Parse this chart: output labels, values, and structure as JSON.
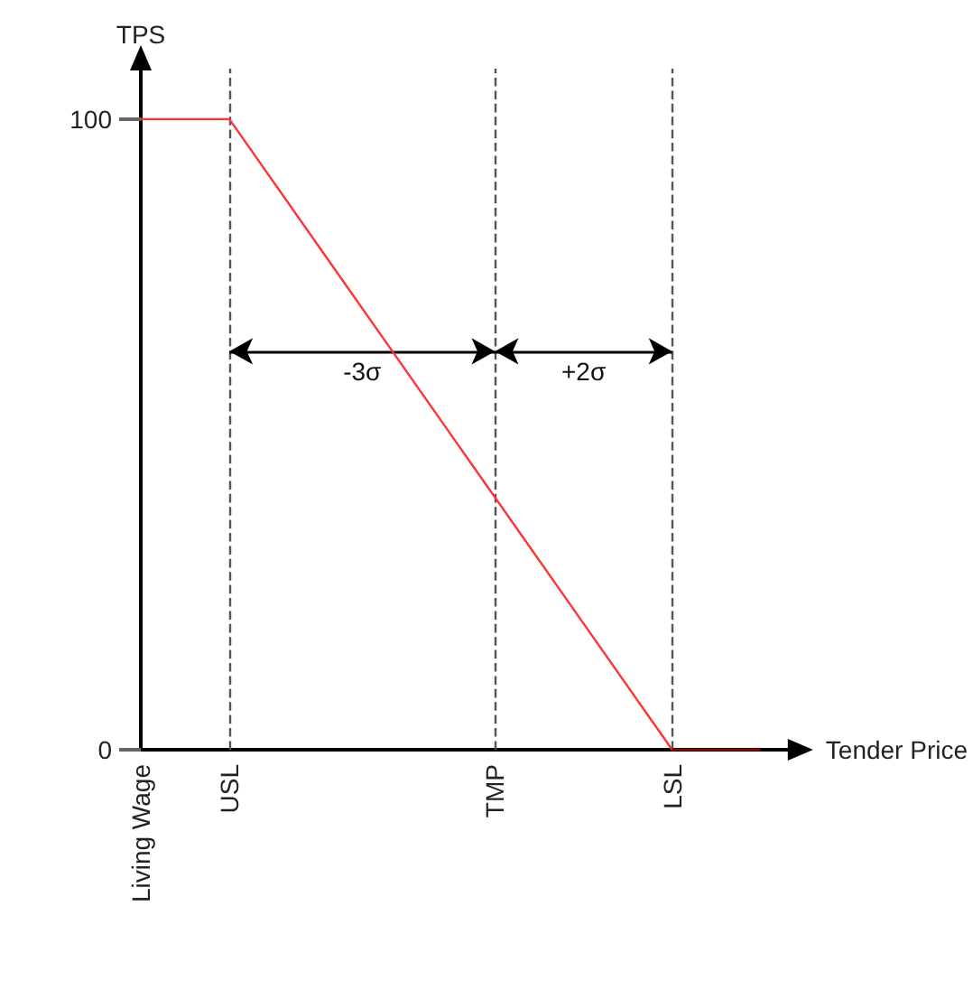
{
  "chart_data": {
    "type": "line",
    "xlabel": "Tender Price",
    "ylabel": "TPS",
    "categories": [
      "Living Wage",
      "USL",
      null,
      null,
      "TMP",
      null,
      "LSL",
      null
    ],
    "series": [
      {
        "color": "#ff3333",
        "values": [
          100,
          100,
          80,
          60,
          40,
          20,
          0,
          null
        ]
      },
      {
        "color": "#990000",
        "values": [
          null,
          null,
          null,
          null,
          null,
          null,
          0,
          0
        ]
      }
    ],
    "ylim": [
      0,
      108
    ],
    "yticks": [
      0,
      100
    ],
    "ref_lines": [
      {
        "axis": "x",
        "value": "USL",
        "color": "#555555",
        "line_style": "dashed"
      },
      {
        "axis": "x",
        "value": "TMP",
        "color": "#555555",
        "line_style": "dashed"
      },
      {
        "axis": "x",
        "value": "LSL",
        "color": "#555555",
        "line_style": "dashed"
      }
    ],
    "annotations": [
      "-3σ",
      "+2σ"
    ],
    "grid": false,
    "marker": "none"
  }
}
